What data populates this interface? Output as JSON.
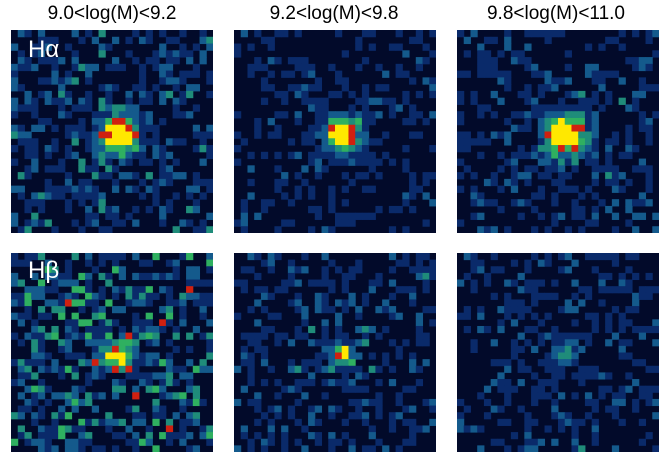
{
  "columns": [
    {
      "title": "9.0<log(M)<9.2"
    },
    {
      "title": "9.2<log(M)<9.8"
    },
    {
      "title": "9.8<log(M)<11.0"
    }
  ],
  "rows": [
    {
      "label": "Hα"
    },
    {
      "label": "Hβ"
    }
  ],
  "colors": {
    "background": "#020a2a",
    "colormap": [
      "#020a2a",
      "#0a2a6a",
      "#145a8c",
      "#1f8c7a",
      "#2fb060",
      "#d02010",
      "#ffe800"
    ]
  }
}
